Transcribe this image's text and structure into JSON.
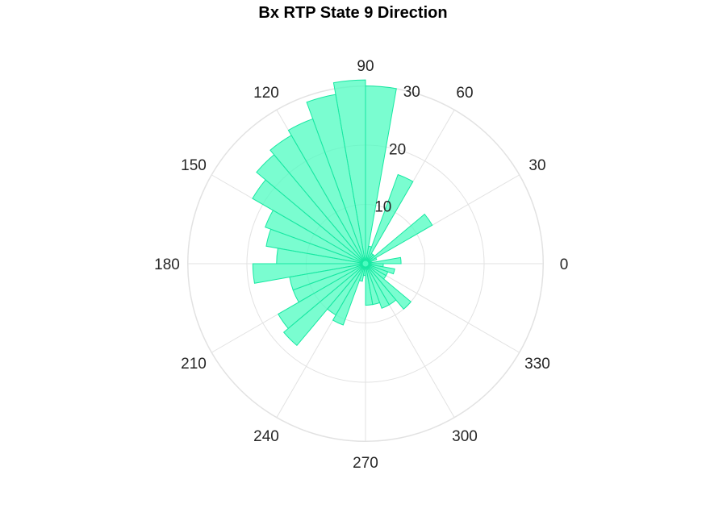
{
  "chart_data": {
    "type": "polar_histogram",
    "title": "Bx  RTP State 9 Direction",
    "bin_width_deg": 10,
    "r_ticks": [
      10,
      20,
      30
    ],
    "r_max": 30,
    "theta_ticks": [
      "0",
      "30",
      "60",
      "90",
      "120",
      "150",
      "180",
      "210",
      "240",
      "270",
      "300",
      "330"
    ],
    "grid": true,
    "bins": [
      {
        "start": 0,
        "end": 10,
        "value": 6
      },
      {
        "start": 10,
        "end": 20,
        "value": 1
      },
      {
        "start": 20,
        "end": 30,
        "value": 2
      },
      {
        "start": 30,
        "end": 40,
        "value": 13
      },
      {
        "start": 40,
        "end": 50,
        "value": 2
      },
      {
        "start": 50,
        "end": 60,
        "value": 2
      },
      {
        "start": 60,
        "end": 70,
        "value": 16
      },
      {
        "start": 70,
        "end": 80,
        "value": 3
      },
      {
        "start": 80,
        "end": 90,
        "value": 30
      },
      {
        "start": 90,
        "end": 100,
        "value": 31
      },
      {
        "start": 100,
        "end": 110,
        "value": 29
      },
      {
        "start": 110,
        "end": 120,
        "value": 26
      },
      {
        "start": 120,
        "end": 130,
        "value": 25
      },
      {
        "start": 130,
        "end": 140,
        "value": 24
      },
      {
        "start": 140,
        "end": 150,
        "value": 22
      },
      {
        "start": 150,
        "end": 160,
        "value": 18
      },
      {
        "start": 160,
        "end": 170,
        "value": 17
      },
      {
        "start": 170,
        "end": 180,
        "value": 15
      },
      {
        "start": 180,
        "end": 190,
        "value": 19
      },
      {
        "start": 190,
        "end": 200,
        "value": 13
      },
      {
        "start": 200,
        "end": 210,
        "value": 13
      },
      {
        "start": 210,
        "end": 220,
        "value": 17
      },
      {
        "start": 220,
        "end": 230,
        "value": 18
      },
      {
        "start": 230,
        "end": 240,
        "value": 10
      },
      {
        "start": 240,
        "end": 250,
        "value": 11
      },
      {
        "start": 250,
        "end": 260,
        "value": 3
      },
      {
        "start": 260,
        "end": 270,
        "value": 2
      },
      {
        "start": 270,
        "end": 280,
        "value": 7
      },
      {
        "start": 280,
        "end": 290,
        "value": 7
      },
      {
        "start": 290,
        "end": 300,
        "value": 8
      },
      {
        "start": 300,
        "end": 310,
        "value": 8
      },
      {
        "start": 310,
        "end": 320,
        "value": 10
      },
      {
        "start": 320,
        "end": 330,
        "value": 4
      },
      {
        "start": 330,
        "end": 340,
        "value": 4
      },
      {
        "start": 340,
        "end": 350,
        "value": 5
      },
      {
        "start": 350,
        "end": 360,
        "value": 3
      }
    ],
    "colors": {
      "bar_fill": "#4dfcc0",
      "bar_stroke": "#17e8a2",
      "grid": "#e2e2e2",
      "title": "#000000",
      "label": "#262626"
    }
  }
}
